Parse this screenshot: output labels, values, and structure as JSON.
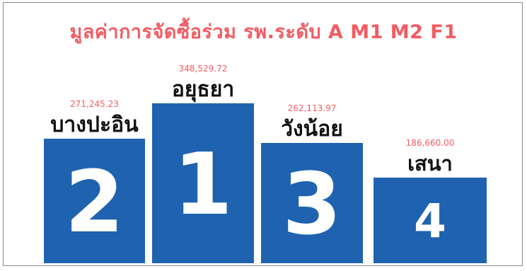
{
  "colors": {
    "bar": "#1f63b0",
    "title": "#f25c63",
    "value": "#f25c63",
    "name": "#111111",
    "rank": "#ffffff"
  },
  "chart_data": {
    "type": "bar",
    "title": "มูลค่าการจัดซื้อร่วม รพ.ระดับ A M1 M2 F1",
    "xlabel": "",
    "ylabel": "",
    "ylim": [
      0,
      348529.72
    ],
    "grid": false,
    "legend": "none",
    "categories": [
      "บางปะอิน",
      "อยุธยา",
      "วังน้อย",
      "เสนา"
    ],
    "values": [
      271245.23,
      348529.72,
      262113.97,
      186660.0
    ],
    "value_labels": [
      "271,245.23",
      "348,529.72",
      "262,113.97",
      "186,660.00"
    ],
    "ranks": [
      "2",
      "1",
      "3",
      "4"
    ]
  }
}
